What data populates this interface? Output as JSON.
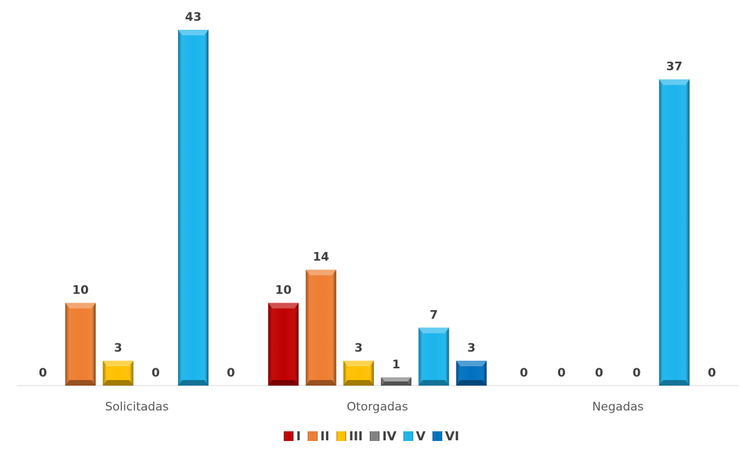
{
  "chart_data": {
    "type": "bar",
    "categories": [
      "Solicitadas",
      "Otorgadas",
      "Negadas"
    ],
    "series": [
      {
        "name": "I",
        "color": "#C00000",
        "values": [
          0,
          10,
          0
        ]
      },
      {
        "name": "II",
        "color": "#ED7D31",
        "values": [
          10,
          14,
          0
        ]
      },
      {
        "name": "III",
        "color": "#FFC000",
        "values": [
          3,
          3,
          0
        ]
      },
      {
        "name": "IV",
        "color": "#808080",
        "values": [
          0,
          1,
          0
        ]
      },
      {
        "name": "V",
        "color": "#1CB4EC",
        "values": [
          43,
          7,
          37
        ]
      },
      {
        "name": "VI",
        "color": "#0070C0",
        "values": [
          0,
          3,
          0
        ]
      }
    ],
    "ylim": [
      0,
      43
    ],
    "grid": false,
    "legend_position": "bottom",
    "show_data_labels": true
  }
}
